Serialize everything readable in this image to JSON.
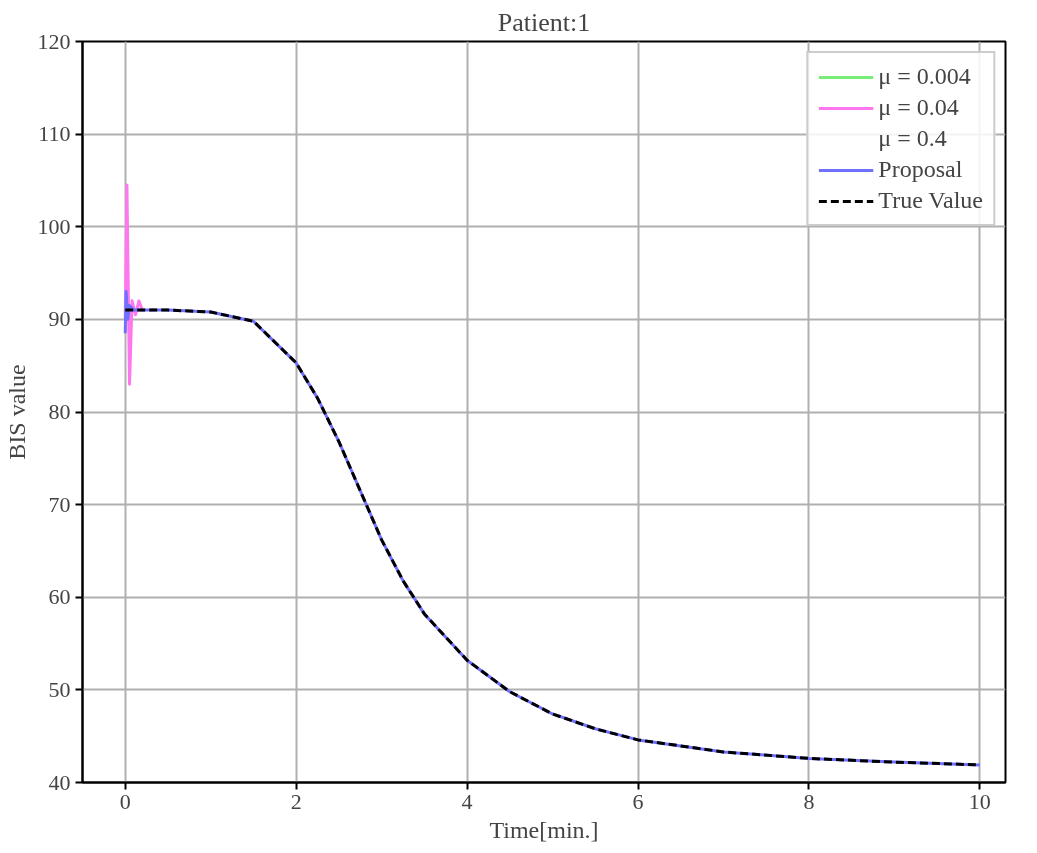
{
  "chart_data": {
    "type": "line",
    "title": "Patient:1",
    "xlabel": "Time[min.]",
    "ylabel": "BIS value",
    "xlim": [
      -0.5,
      10.3
    ],
    "ylim": [
      40,
      120
    ],
    "xticks": [
      0,
      2,
      4,
      6,
      8,
      10
    ],
    "yticks": [
      40,
      50,
      60,
      70,
      80,
      90,
      100,
      110,
      120
    ],
    "grid": true,
    "legend": "top right",
    "series": [
      {
        "name": "μ = 0.004",
        "color": "#77ee77"
      },
      {
        "name": "μ = 0.04",
        "color": "#ff77ee",
        "x": [
          0,
          0.02,
          0.05,
          0.08,
          0.12,
          0.16,
          0.2
        ],
        "values": [
          90,
          104.5,
          83,
          92,
          90.5,
          92,
          91
        ]
      },
      {
        "name": "μ = 0.4"
      },
      {
        "name": "Proposal",
        "color": "#7070ff",
        "x": [
          0,
          0.01,
          0.03,
          0.05,
          0.1,
          0.5,
          1,
          1.5,
          2,
          2.25,
          2.5,
          2.75,
          3,
          3.25,
          3.5,
          4,
          4.5,
          5,
          5.5,
          6,
          7,
          8,
          9,
          10
        ],
        "values": [
          88.5,
          93,
          90,
          91.5,
          91,
          91,
          90.8,
          89.8,
          85.3,
          81.5,
          76.8,
          71.5,
          66.2,
          61.8,
          58.2,
          53.2,
          49.8,
          47.4,
          45.8,
          44.6,
          43.3,
          42.6,
          42.2,
          41.9
        ]
      },
      {
        "name": "True Value",
        "color": "#000000",
        "line_style": "dashed",
        "x": [
          0,
          0.5,
          1,
          1.5,
          2,
          2.25,
          2.5,
          2.75,
          3,
          3.25,
          3.5,
          4,
          4.5,
          5,
          5.5,
          6,
          7,
          8,
          9,
          10
        ],
        "values": [
          91,
          91,
          90.8,
          89.8,
          85.3,
          81.5,
          76.8,
          71.5,
          66.2,
          61.8,
          58.2,
          53.2,
          49.8,
          47.4,
          45.8,
          44.6,
          43.3,
          42.6,
          42.2,
          41.9
        ]
      }
    ]
  }
}
